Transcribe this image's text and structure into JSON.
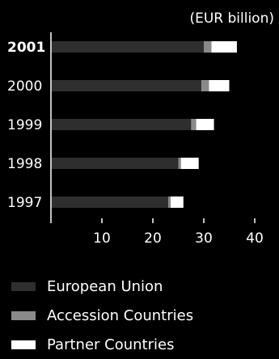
{
  "chart_data": {
    "type": "bar",
    "stacked": true,
    "orientation": "horizontal",
    "unit_label": "(EUR billion)",
    "categories": [
      "2001",
      "2000",
      "1999",
      "1998",
      "1997"
    ],
    "series": [
      {
        "name": "European Union",
        "values": [
          30.0,
          29.5,
          27.5,
          25.0,
          23.0
        ],
        "color": "#2e2e2e"
      },
      {
        "name": "Accession Countries",
        "values": [
          1.5,
          1.5,
          1.0,
          0.5,
          0.5
        ],
        "color": "#8a8a8a"
      },
      {
        "name": "Partner Countries",
        "values": [
          5.0,
          4.0,
          3.5,
          3.5,
          2.5
        ],
        "color": "#ffffff"
      }
    ],
    "xticks": [
      10,
      20,
      30,
      40
    ],
    "xlim": [
      0,
      45
    ],
    "bold_category": "2001",
    "grid": false,
    "legend_position": "bottom-left"
  }
}
